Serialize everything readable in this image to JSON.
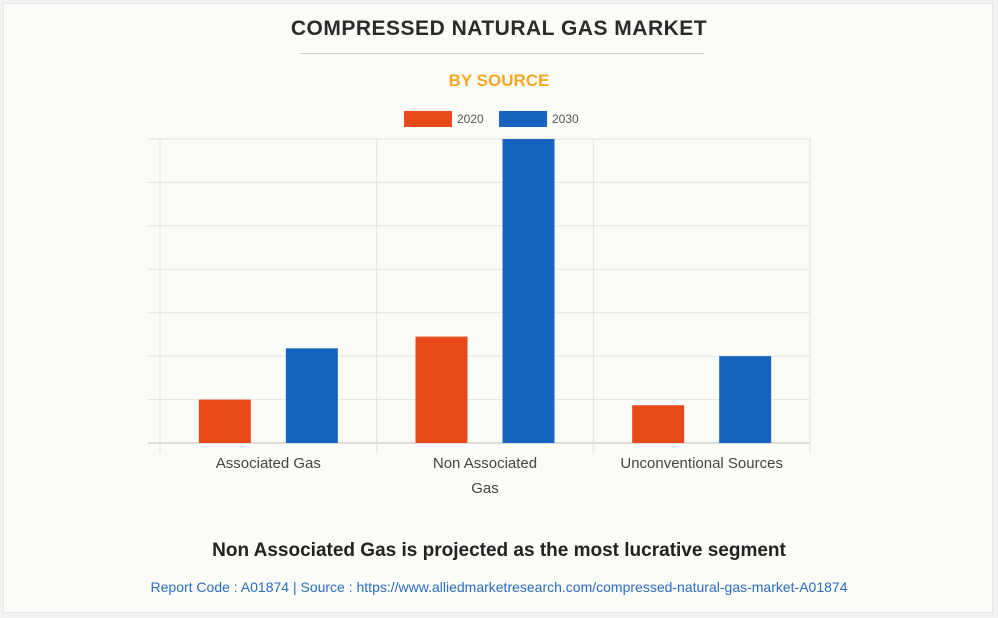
{
  "chart_data": {
    "type": "bar",
    "title": "COMPRESSED NATURAL GAS MARKET",
    "subtitle": "BY SOURCE",
    "categories": [
      "Associated Gas",
      "Non Associated Gas",
      "Unconventional Sources"
    ],
    "category_lines": [
      [
        "Associated Gas"
      ],
      [
        "Non Associated",
        "Gas"
      ],
      [
        "Unconventional Sources"
      ]
    ],
    "series": [
      {
        "name": "2020",
        "color": "#e64a19",
        "values": [
          1.0,
          2.45,
          0.87
        ]
      },
      {
        "name": "2030",
        "color": "#1565c0",
        "values": [
          2.18,
          7.0,
          2.0
        ]
      }
    ],
    "ylim": [
      0,
      7
    ],
    "grid": true,
    "legend_position": "top-center",
    "xlabel": "",
    "ylabel": ""
  },
  "footer": {
    "headline": "Non Associated Gas is projected as the most lucrative segment",
    "report_line": "Report Code : A01874  |  Source : https://www.alliedmarketresearch.com/compressed-natural-gas-market-A01874"
  }
}
